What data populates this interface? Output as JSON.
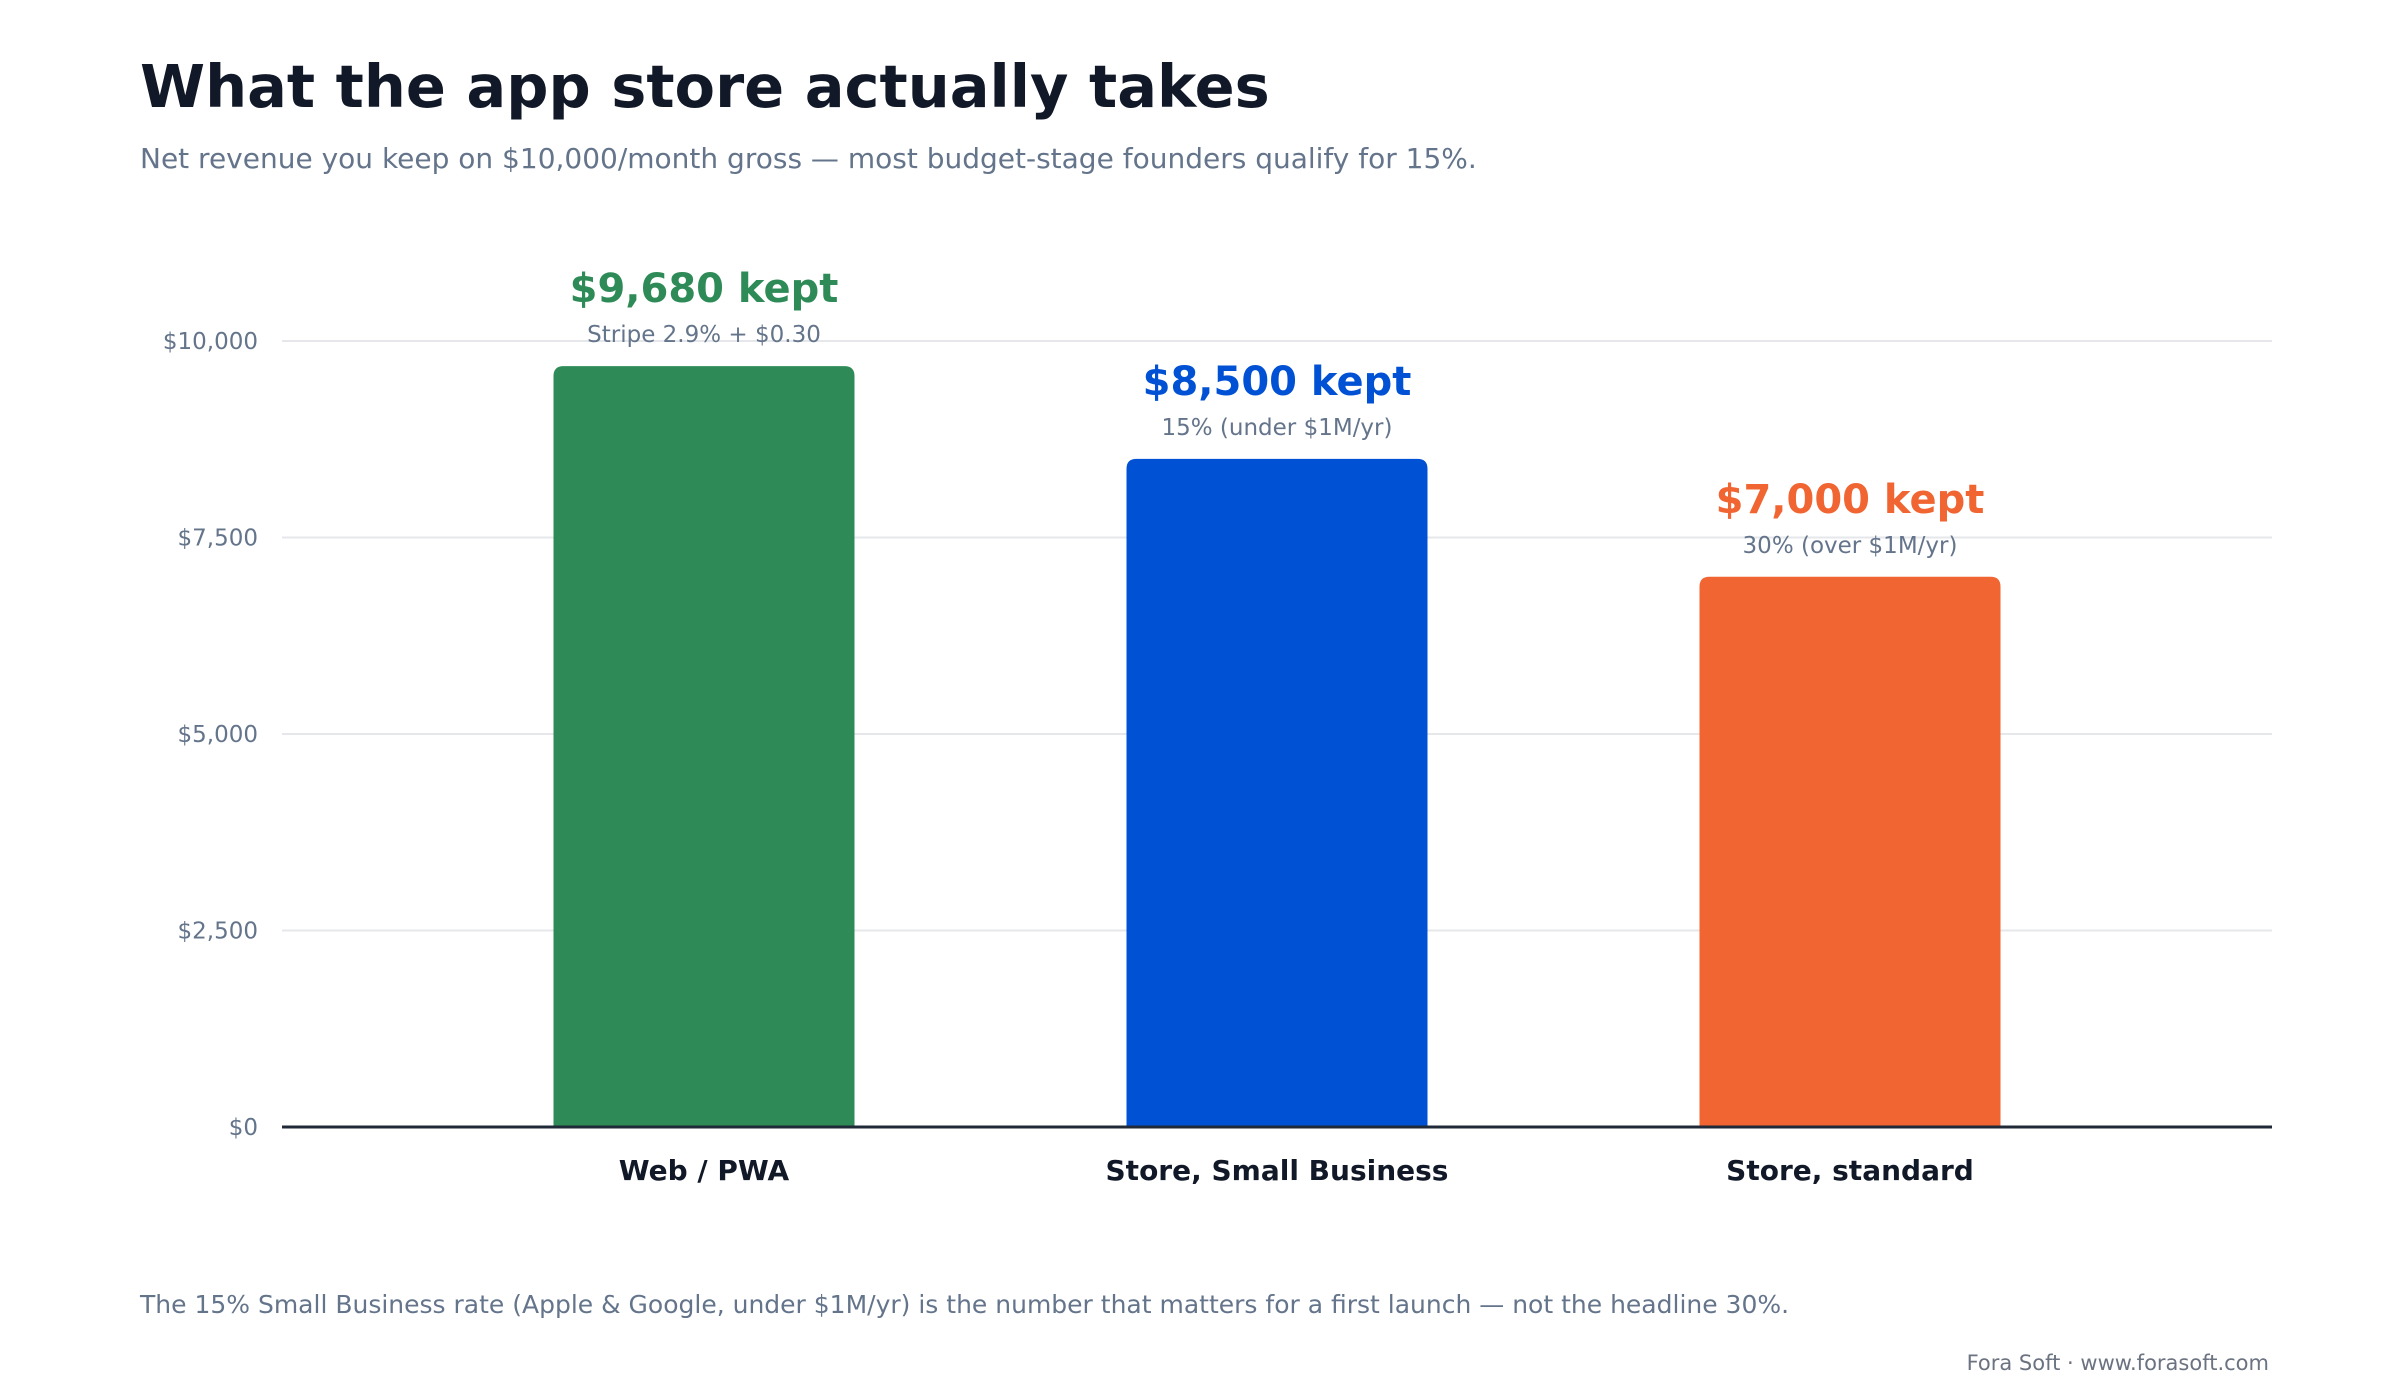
{
  "title": "What the app store actually takes",
  "subtitle": "Net revenue you keep on $10,000/month gross — most budget-stage founders qualify for 15%.",
  "footnote": "The 15% Small Business rate (Apple & Google, under $1M/yr) is the number that matters for a first launch — not the headline 30%.",
  "source": "Fora Soft · www.forasoft.com",
  "chart_data": {
    "type": "bar",
    "categories": [
      "Web / PWA",
      "Store, Small Business",
      "Store, standard"
    ],
    "values": [
      9680,
      8500,
      7000
    ],
    "value_labels": [
      "$9,680 kept",
      "$8,500 kept",
      "$7,000 kept"
    ],
    "annotations": [
      "Stripe 2.9% + $0.30",
      "15% (under $1M/yr)",
      "30% (over $1M/yr)"
    ],
    "colors": [
      "#2e8b57",
      "#0051d4",
      "#f06532"
    ],
    "ylim": [
      0,
      10000
    ],
    "yticks": [
      0,
      2500,
      5000,
      7500,
      10000
    ],
    "ytick_labels": [
      "$0",
      "$2,500",
      "$5,000",
      "$7,500",
      "$10,000"
    ],
    "grid": true,
    "legend": "none"
  }
}
